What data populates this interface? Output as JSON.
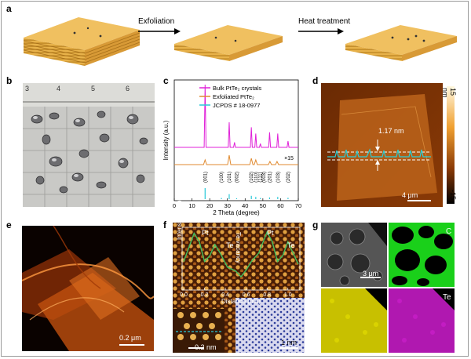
{
  "panels": {
    "a": {
      "label": "a",
      "arrow1_label": "Exfoliation",
      "arrow2_label": "Heat treatment"
    },
    "b": {
      "label": "b",
      "ruler_ticks": [
        "3",
        "4",
        "5",
        "6"
      ]
    },
    "c": {
      "label": "c",
      "legend": [
        "Bulk PtTe₂ crystals",
        "Exfoliated PtTe₂",
        "JCPDS # 18-0977"
      ],
      "scale_note": "×15",
      "peak_labels": [
        "(001)",
        "(100)",
        "(101)",
        "(002)",
        "(102)",
        "(110)",
        "(111)",
        "(003)",
        "(201)",
        "(103)",
        "(202)"
      ],
      "colors": {
        "bulk": "#e020d8",
        "exfoliated": "#e08a30",
        "jcpds": "#28c8d8"
      }
    },
    "d": {
      "label": "d",
      "height_annotation": "1.17 nm",
      "scalebar": "4 μm",
      "colorbar_top": "15 nm",
      "colorbar_bottom": "-15"
    },
    "e": {
      "label": "e",
      "scalebar": "0.2 μm"
    },
    "f": {
      "label": "f",
      "atom_labels": [
        "Pt",
        "Te",
        "Pt",
        "Te"
      ],
      "vacancy_label": "Te vacancy",
      "inset_scalebar": "0.2 nm",
      "scalebar": "1 nm"
    },
    "g": {
      "label": "g",
      "scalebar": "3 μm",
      "maps": [
        "C",
        "Pt",
        "Te"
      ],
      "colors": {
        "C": "#22e022",
        "Pt": "#e6e000",
        "Te": "#d020d0"
      }
    }
  },
  "chart_data": [
    {
      "type": "line",
      "panel": "c",
      "xlabel": "2 Theta (degree)",
      "ylabel": "Intensity (a.u.)",
      "xlim": [
        0,
        70
      ],
      "x_ticks": [
        0,
        10,
        20,
        30,
        40,
        50,
        60,
        70
      ],
      "series": [
        {
          "name": "Bulk PtTe₂ crystals",
          "peaks": [
            [
              17.4,
              100
            ],
            [
              31.0,
              40
            ],
            [
              34.0,
              8
            ],
            [
              43.5,
              32
            ],
            [
              46.0,
              22
            ],
            [
              48.6,
              6
            ],
            [
              53.8,
              24
            ],
            [
              58.4,
              22
            ],
            [
              64.2,
              10
            ]
          ]
        },
        {
          "name": "Exfoliated PtTe₂",
          "peaks": [
            [
              17.4,
              3
            ],
            [
              31.0,
              6
            ],
            [
              43.5,
              4
            ],
            [
              46.0,
              3
            ],
            [
              54.0,
              2
            ],
            [
              58.0,
              2
            ]
          ]
        },
        {
          "name": "JCPDS # 18-0977",
          "peaks": [
            [
              17.4,
              100
            ],
            [
              26.6,
              10
            ],
            [
              31.0,
              45
            ],
            [
              35.2,
              8
            ],
            [
              43.5,
              30
            ],
            [
              46.0,
              20
            ],
            [
              48.6,
              10
            ],
            [
              53.8,
              15
            ],
            [
              58.4,
              20
            ],
            [
              64.2,
              12
            ]
          ]
        }
      ]
    },
    {
      "type": "line",
      "panel": "f-inset",
      "xlabel": "Distance (nm)",
      "ylabel": "Intensity (a.u.)",
      "xlim": [
        0,
        1.1
      ],
      "x_ticks": [
        0.0,
        0.2,
        0.4,
        0.6,
        0.8,
        1.0
      ],
      "series": [
        {
          "name": "profile",
          "x": [
            0.0,
            0.05,
            0.1,
            0.15,
            0.2,
            0.25,
            0.3,
            0.35,
            0.42,
            0.5,
            0.55,
            0.6,
            0.65,
            0.72,
            0.8,
            0.85,
            0.9,
            0.95,
            1.0,
            1.05,
            1.1
          ],
          "y": [
            0.45,
            0.7,
            0.95,
            0.8,
            0.45,
            0.55,
            0.75,
            0.6,
            0.35,
            0.28,
            0.18,
            0.3,
            0.45,
            0.6,
            0.97,
            0.8,
            0.45,
            0.55,
            0.8,
            0.6,
            0.4
          ]
        }
      ]
    }
  ]
}
